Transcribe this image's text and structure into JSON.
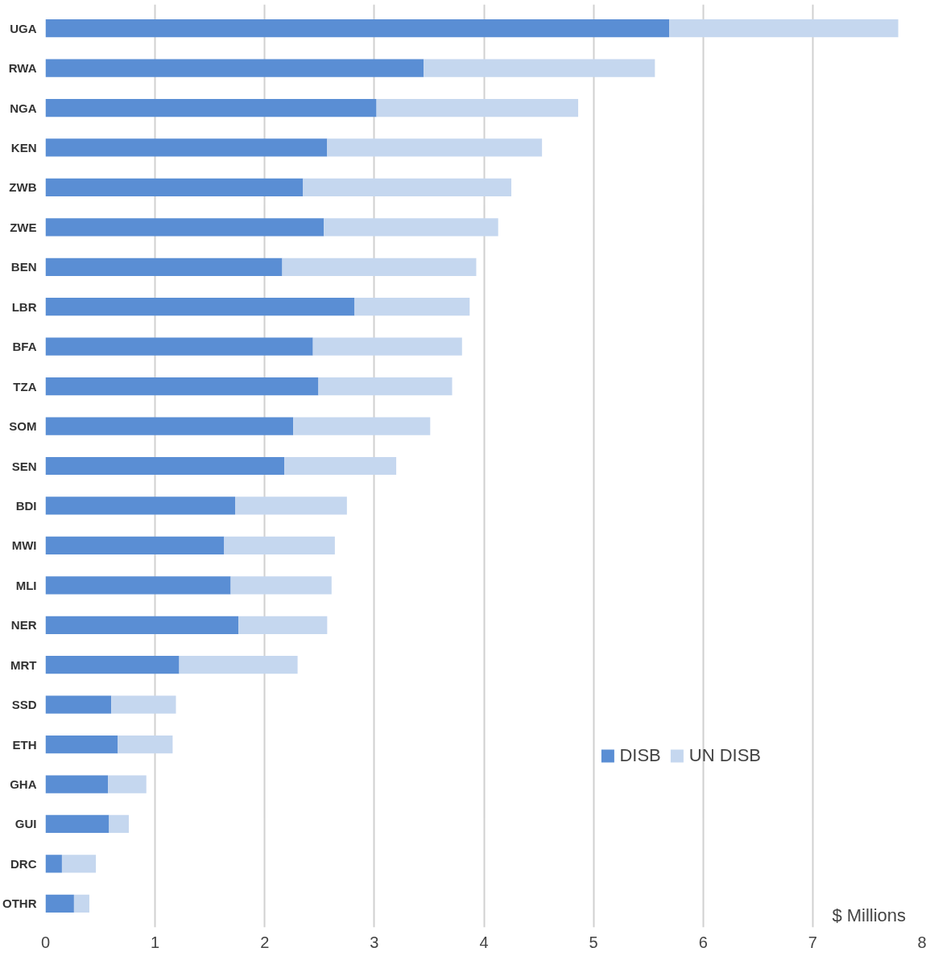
{
  "chart_data": {
    "type": "bar",
    "orientation": "horizontal",
    "stacked": true,
    "categories": [
      "UGA",
      "RWA",
      "NGA",
      "KEN",
      "ZWB",
      "ZWE",
      "BEN",
      "LBR",
      "BFA",
      "TZA",
      "SOM",
      "SEN",
      "BDI",
      "MWI",
      "MLI",
      "NER",
      "MRT",
      "SSD",
      "ETH",
      "GHA",
      "GUI",
      "DRC",
      "OTHR"
    ],
    "series": [
      {
        "name": "DISB",
        "color": "#5a8ed4",
        "values": [
          5.69,
          3.45,
          3.02,
          2.57,
          2.35,
          2.54,
          2.16,
          2.82,
          2.44,
          2.49,
          2.26,
          2.18,
          1.73,
          1.63,
          1.69,
          1.76,
          1.22,
          0.6,
          0.66,
          0.57,
          0.58,
          0.15,
          0.26
        ]
      },
      {
        "name": "UN DISB",
        "color": "#c5d7ef",
        "values": [
          2.09,
          2.11,
          1.84,
          1.96,
          1.9,
          1.59,
          1.77,
          1.05,
          1.36,
          1.22,
          1.25,
          1.02,
          1.02,
          1.01,
          0.92,
          0.81,
          1.08,
          0.59,
          0.5,
          0.35,
          0.18,
          0.31,
          0.14
        ]
      }
    ],
    "xlim": [
      0,
      8
    ],
    "xticks": [
      0,
      1,
      2,
      3,
      4,
      5,
      6,
      7,
      8
    ],
    "grid": "x",
    "legend": "bottom right",
    "annotations": [
      "$ Millions"
    ]
  }
}
